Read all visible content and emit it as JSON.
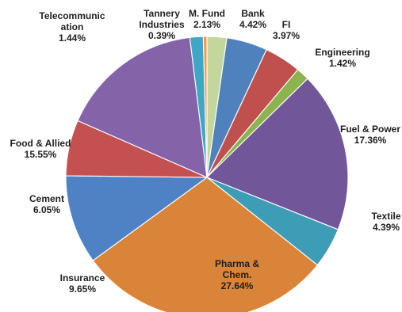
{
  "chart_data": {
    "type": "pie",
    "categories": [
      "M. Fund",
      "Bank",
      "FI",
      "Engineering",
      "Fuel & Power",
      "Textile",
      "Pharma & Chem.",
      "Insurance",
      "Cement",
      "Food & Allied",
      "Telecommunication",
      "Tannery Industries"
    ],
    "values": [
      2.13,
      4.42,
      3.97,
      1.42,
      17.36,
      4.39,
      27.64,
      9.65,
      6.05,
      15.55,
      1.44,
      0.39
    ],
    "display_values": [
      "2.13%",
      "4.42%",
      "3.97%",
      "1.42%",
      "17.36%",
      "4.39%",
      "27.64%",
      "9.65%",
      "6.05%",
      "15.55%",
      "1.44%",
      "0.39%"
    ],
    "label_lines": [
      [
        "M. Fund",
        "2.13%"
      ],
      [
        "Bank",
        "4.42%"
      ],
      [
        "FI",
        "3.97%"
      ],
      [
        "Engineering",
        "1.42%"
      ],
      [
        "Fuel & Power",
        "17.36%"
      ],
      [
        "Textile",
        "4.39%"
      ],
      [
        "Pharma &",
        "Chem.",
        "27.64%"
      ],
      [
        "Insurance",
        "9.65%"
      ],
      [
        "Cement",
        "6.05%"
      ],
      [
        "Food & Allied",
        "15.55%"
      ],
      [
        "Telecommunic",
        "ation",
        "1.44%"
      ],
      [
        "Tannery",
        "Industries",
        "0.39%"
      ]
    ],
    "slice_order": [
      "M. Fund",
      "Bank",
      "FI",
      "Engineering",
      "Fuel & Power",
      "Textile",
      "Pharma & Chem.",
      "Insurance",
      "Cement",
      "Food & Allied",
      "Telecommunication",
      "Tannery Industries"
    ],
    "colors": [
      "#4F81BD",
      "#C0504D",
      "#9BBB59",
      "#8064A2",
      "#4BACC6",
      "#F79646",
      "#4F81BD",
      "#C0504D",
      "#8064A2",
      "#4BACC6",
      "#F79646",
      "#C3D69B"
    ],
    "legend": false,
    "grid": false
  }
}
